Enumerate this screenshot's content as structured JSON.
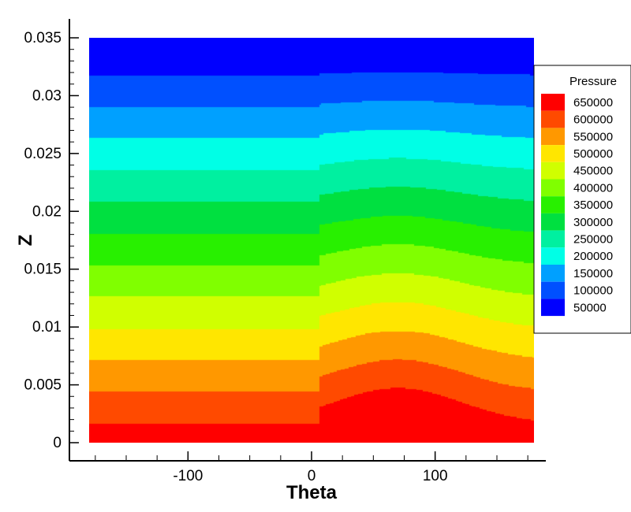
{
  "chart_data": {
    "type": "heatmap",
    "subtype": "filled-contour",
    "xlabel": "Theta",
    "ylabel": "Z",
    "xlim": [
      -180,
      180
    ],
    "ylim": [
      0,
      0.035
    ],
    "x_ticks": [
      -100,
      0,
      100
    ],
    "x_tick_labels": [
      "-100",
      "0",
      "100"
    ],
    "y_ticks": [
      0,
      0.005,
      0.01,
      0.015,
      0.02,
      0.025,
      0.03,
      0.035
    ],
    "y_tick_labels": [
      "0",
      "0.005",
      "0.01",
      "0.015",
      "0.02",
      "0.025",
      "0.03",
      "0.035"
    ],
    "grid": false,
    "legend": {
      "title": "Pressure",
      "placement": "right",
      "levels": [
        650000,
        600000,
        550000,
        500000,
        450000,
        400000,
        350000,
        300000,
        250000,
        200000,
        150000,
        100000,
        50000
      ],
      "level_labels": [
        "650000",
        "600000",
        "550000",
        "500000",
        "450000",
        "400000",
        "350000",
        "300000",
        "250000",
        "200000",
        "150000",
        "100000",
        "50000"
      ],
      "colors": [
        "#ff0000",
        "#ff4a00",
        "#ff9800",
        "#ffe600",
        "#d0ff00",
        "#80ff00",
        "#28f000",
        "#00e040",
        "#00f0a0",
        "#00ffe6",
        "#00a0ff",
        "#0050ff",
        "#0000ff"
      ]
    },
    "field": {
      "p_at_z0": 680000,
      "p_at_top": 40000,
      "top_z": 0.035,
      "discontinuity_theta": 7,
      "bump_center_theta": 70,
      "bump_width_theta": 70,
      "bump_amplitude_z": 0.0035,
      "max_pressure_region": {
        "theta_range": [
          75,
          130
        ],
        "z_max": 0.0012
      }
    }
  }
}
